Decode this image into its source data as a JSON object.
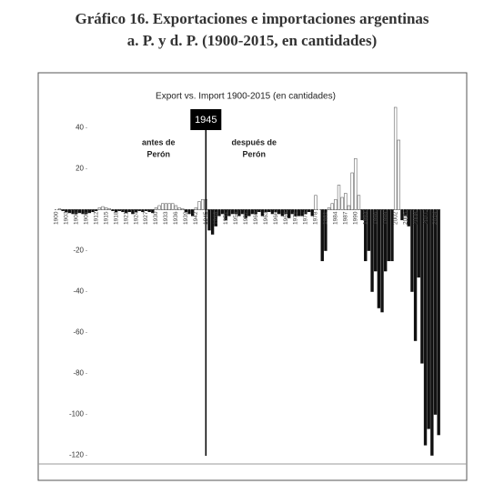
{
  "page_title": [
    "Gráfico 16. Exportaciones e importaciones argentinas",
    "a. P. y d. P. (1900-2015, en cantidades)"
  ],
  "chart_data": {
    "type": "bar",
    "title": "Export vs. Import 1900-2015 (en cantidades)",
    "categories": [
      "1900",
      null,
      null,
      "1903",
      null,
      null,
      "1906",
      null,
      null,
      "1909",
      null,
      null,
      "1912",
      null,
      null,
      "1915",
      null,
      null,
      "1918",
      null,
      null,
      "1921",
      null,
      null,
      "1924",
      null,
      null,
      "1927",
      null,
      null,
      "1930",
      null,
      null,
      "1933",
      null,
      null,
      "1936",
      null,
      null,
      "1939",
      null,
      null,
      "1942",
      null,
      null,
      "1945",
      null,
      null,
      "1948",
      null,
      null,
      "1951",
      null,
      null,
      "1954",
      null,
      null,
      "1957",
      null,
      null,
      "1960",
      null,
      null,
      "1963",
      null,
      null,
      "1966",
      null,
      null,
      "1969",
      null,
      null,
      "1972",
      null,
      null,
      "1975",
      null,
      null,
      "1978",
      null,
      null,
      "1981",
      null,
      null,
      "1984",
      null,
      null,
      "1987",
      null,
      null,
      "1990",
      null,
      null,
      "1993",
      null,
      null,
      "1996",
      null,
      null,
      "1999",
      null,
      null,
      "2002",
      null,
      null,
      "2005",
      null,
      null,
      "2008",
      null,
      null,
      "2011",
      null,
      null,
      "2014",
      null
    ],
    "values": [
      0,
      0.5,
      -0.5,
      -1,
      -1.5,
      -2,
      -2,
      -1.5,
      -2,
      -2,
      -1.5,
      -1,
      -0.5,
      1,
      1.5,
      1,
      0.5,
      -0.5,
      -1,
      -0.5,
      -1,
      -1.5,
      -1,
      -2,
      -1,
      -0.5,
      -1,
      -0.5,
      -1,
      -1.5,
      1,
      2,
      3,
      3,
      3,
      3,
      2,
      1,
      0.5,
      -1,
      -2,
      -3,
      1,
      4,
      5,
      5,
      -10,
      -12,
      -8,
      -3,
      -2,
      -5,
      -3,
      -2,
      -2,
      -3,
      -2,
      -4,
      -3,
      -2,
      -2,
      -1,
      -3,
      -1,
      -1,
      -2,
      -1,
      -2,
      -3,
      -2,
      -4,
      -2,
      -3,
      -3,
      -3,
      -2,
      -1,
      -3,
      7,
      0,
      -25,
      -20,
      1,
      3,
      5,
      12,
      6,
      8,
      2,
      18,
      25,
      7,
      -5,
      -25,
      -20,
      -40,
      -30,
      -48,
      -50,
      -30,
      -25,
      -25,
      50,
      34,
      -5,
      -3,
      -8,
      -40,
      -64,
      -33,
      -75,
      -115,
      -107,
      -120,
      -100,
      -110
    ],
    "color": "#111111",
    "positive_fill": "#ffffff",
    "positive_stroke": "#666666",
    "ylim": [
      -122,
      50
    ],
    "yticks": [
      -120,
      -100,
      -80,
      -60,
      -40,
      -20,
      20,
      40
    ],
    "marker_label": "1945",
    "before_label": [
      "antes de",
      "Perón"
    ],
    "after_label": [
      "después de",
      "Perón"
    ]
  }
}
